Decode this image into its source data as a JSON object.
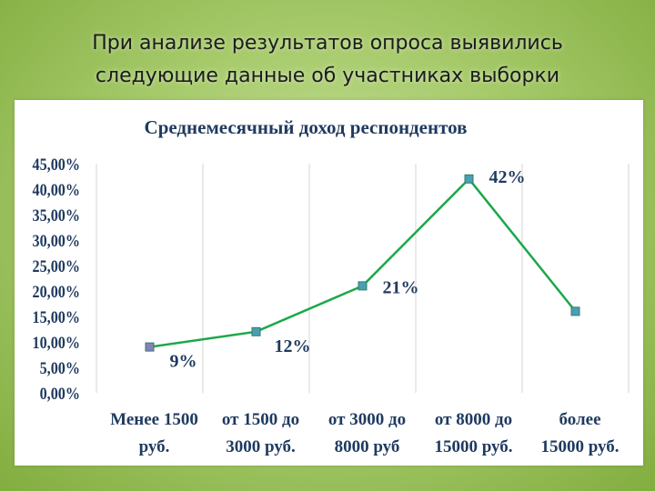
{
  "slide": {
    "title_line1": "При анализе результатов опроса выявились",
    "title_line2": "следующие данные об участниках выборки"
  },
  "chart_data": {
    "type": "line",
    "title": "Среднемесячный доход респондентов",
    "categories": [
      [
        "Менее 1500",
        "руб."
      ],
      [
        "от  1500 до",
        "3000 руб."
      ],
      [
        "от 3000 до",
        "8000 руб"
      ],
      [
        "от 8000 до",
        "15000 руб."
      ],
      [
        "более",
        "15000 руб."
      ]
    ],
    "values": [
      9,
      12,
      21,
      42,
      16
    ],
    "data_labels": [
      "9%",
      "12%",
      "21%",
      "42%",
      ""
    ],
    "yticks": [
      "0,00%",
      "5,00%",
      "10,00%",
      "15,00%",
      "20,00%",
      "25,00%",
      "30,00%",
      "35,00%",
      "40,00%",
      "45,00%"
    ],
    "ylim": [
      0,
      45
    ],
    "grid": "vertical category dividers",
    "colors": {
      "line": "#1aa84a",
      "marker": "#4aa0b0",
      "first_marker": "#8a7fb8",
      "text": "#1f3a5f"
    }
  }
}
